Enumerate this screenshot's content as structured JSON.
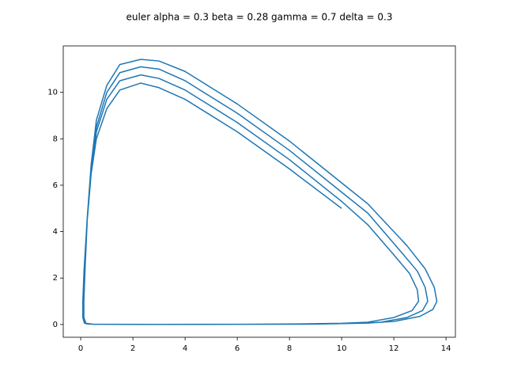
{
  "chart_data": {
    "type": "line",
    "title": "euler alpha = 0.3 beta = 0.28 gamma = 0.7 delta = 0.3",
    "xlim": [
      -0.67,
      14.36
    ],
    "ylim": [
      -0.55,
      12.0
    ],
    "xticks": [
      0,
      2,
      4,
      6,
      8,
      10,
      12,
      14
    ],
    "yticks": [
      0,
      2,
      4,
      6,
      8,
      10
    ],
    "series": [
      {
        "color": "#1f77b4",
        "x": [
          10,
          8,
          6,
          4,
          3,
          2.3,
          1.5,
          1,
          0.6,
          0.4,
          0.25,
          0.17,
          0.12,
          0.12,
          0.2,
          0.5,
          2,
          4,
          6,
          8,
          10,
          11,
          12,
          12.7,
          12.95,
          12.9,
          12.6,
          12,
          11,
          10,
          8,
          6,
          4,
          3,
          2.3,
          1.5,
          1,
          0.6,
          0.4,
          0.25,
          0.15,
          0.1,
          0.1,
          0.2,
          0.5,
          3,
          6,
          9,
          10.5,
          11.5,
          12.5,
          13.1,
          13.3,
          13.2,
          12.9,
          12.3,
          11,
          10,
          8,
          6,
          4,
          3,
          2.3,
          1.5,
          1,
          0.6,
          0.4,
          0.25,
          0.13,
          0.09,
          0.09,
          0.2,
          0.5,
          3,
          6,
          9,
          11,
          12,
          13,
          13.5,
          13.65,
          13.55,
          13.2,
          12.5,
          11,
          10,
          8,
          6,
          4,
          3,
          2.3,
          1.5,
          1,
          0.6,
          0.4,
          0.25,
          0.13,
          0.08,
          0.08,
          0.15
        ],
        "y": [
          5,
          6.7,
          8.3,
          9.7,
          10.2,
          10.4,
          10.1,
          9.3,
          8,
          6.5,
          4.5,
          2.5,
          1,
          0.3,
          0.05,
          0.01,
          0.005,
          0.005,
          0.01,
          0.02,
          0.05,
          0.1,
          0.3,
          0.6,
          1,
          1.5,
          2.2,
          3,
          4.3,
          5.3,
          7.1,
          8.7,
          10.1,
          10.6,
          10.75,
          10.5,
          9.7,
          8.3,
          6.6,
          4.5,
          2.5,
          1,
          0.3,
          0.04,
          0.01,
          0.005,
          0.008,
          0.02,
          0.05,
          0.1,
          0.3,
          0.6,
          1,
          1.6,
          2.3,
          3.1,
          4.8,
          5.7,
          7.5,
          9.1,
          10.5,
          11,
          11.1,
          10.85,
          10,
          8.5,
          6.7,
          4.5,
          2.4,
          1,
          0.3,
          0.03,
          0.008,
          0.004,
          0.007,
          0.015,
          0.06,
          0.13,
          0.35,
          0.65,
          1,
          1.6,
          2.4,
          3.4,
          5.2,
          6.1,
          7.9,
          9.5,
          10.9,
          11.35,
          11.42,
          11.2,
          10.3,
          8.8,
          6.9,
          4.6,
          2.4,
          1,
          0.3,
          0.03
        ]
      }
    ]
  }
}
